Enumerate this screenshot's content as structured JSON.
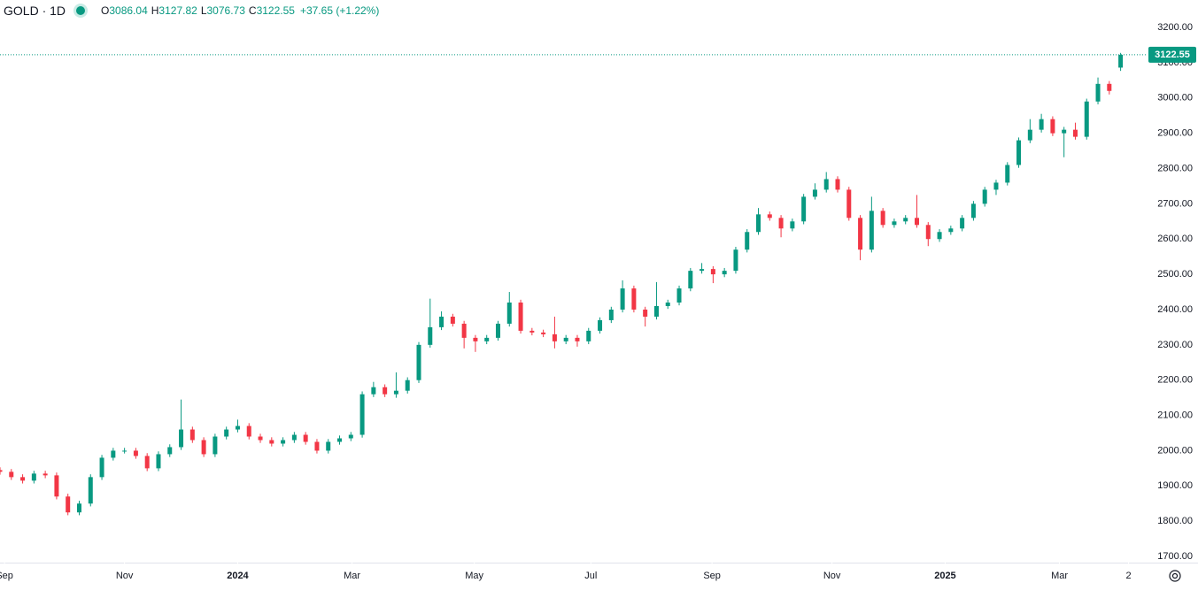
{
  "chart_data": {
    "type": "candlestick",
    "title": "GOLD · 1D",
    "ohlc_labels": [
      "O",
      "H",
      "L",
      "C"
    ],
    "change_label": "+37.65 (+1.22%)",
    "up_color": "#089981",
    "down_color": "#f23645",
    "xlim": [
      0,
      101.3
    ],
    "ylim": [
      1682.6,
      3277.8
    ],
    "xticks": [
      {
        "value": 0.4,
        "label": "Sep"
      },
      {
        "value": 11.0,
        "label": "Nov"
      },
      {
        "value": 21.0,
        "label": "2024"
      },
      {
        "value": 31.1,
        "label": "Mar"
      },
      {
        "value": 41.9,
        "label": "May"
      },
      {
        "value": 52.2,
        "label": "Jul"
      },
      {
        "value": 62.9,
        "label": "Sep"
      },
      {
        "value": 73.5,
        "label": "Nov"
      },
      {
        "value": 83.5,
        "label": "2025"
      },
      {
        "value": 93.6,
        "label": "Mar"
      },
      {
        "value": 99.7,
        "label": "2"
      }
    ],
    "yticks": [
      {
        "value": 1700,
        "label": "1700.00"
      },
      {
        "value": 1800,
        "label": "1800.00"
      },
      {
        "value": 1900,
        "label": "1900.00"
      },
      {
        "value": 2000,
        "label": "2000.00"
      },
      {
        "value": 2100,
        "label": "2100.00"
      },
      {
        "value": 2200,
        "label": "2200.00"
      },
      {
        "value": 2300,
        "label": "2300.00"
      },
      {
        "value": 2400,
        "label": "2400.00"
      },
      {
        "value": 2500,
        "label": "2500.00"
      },
      {
        "value": 2600,
        "label": "2600.00"
      },
      {
        "value": 2700,
        "label": "2700.00"
      },
      {
        "value": 2800,
        "label": "2800.00"
      },
      {
        "value": 2900,
        "label": "2900.00"
      },
      {
        "value": 3000,
        "label": "3000.00"
      },
      {
        "value": 3100,
        "label": "3100.00"
      },
      {
        "value": 3200,
        "label": "3200.00"
      }
    ],
    "open": [
      1945,
      1940,
      1925,
      1915,
      1935,
      1930,
      1870,
      1825,
      1850,
      1925,
      1980,
      2000,
      2000,
      1985,
      1950,
      1990,
      2010,
      2060,
      2030,
      1990,
      2040,
      2060,
      2070,
      2040,
      2030,
      2020,
      2030,
      2045,
      2025,
      2000,
      2025,
      2035,
      2045,
      2160,
      2180,
      2160,
      2170,
      2200,
      2300,
      2350,
      2380,
      2360,
      2320,
      2310,
      2320,
      2360,
      2420,
      2340,
      2335,
      2330,
      2310,
      2320,
      2310,
      2340,
      2370,
      2400,
      2460,
      2400,
      2380,
      2410,
      2420,
      2460,
      2510,
      2515,
      2500,
      2510,
      2570,
      2620,
      2670,
      2660,
      2630,
      2650,
      2720,
      2740,
      2770,
      2740,
      2660,
      2570,
      2680,
      2640,
      2650,
      2660,
      2640,
      2600,
      2620,
      2630,
      2660,
      2700,
      2740,
      2760,
      2810,
      2880,
      2910,
      2940,
      2900,
      2910,
      2890,
      2990,
      3040,
      3086.04
    ],
    "high": [
      1953,
      1948,
      1933,
      1943,
      1943,
      1938,
      1878,
      1858,
      1933,
      1988,
      2008,
      2008,
      2008,
      1993,
      1998,
      2018,
      2145,
      2068,
      2038,
      2048,
      2068,
      2088,
      2078,
      2048,
      2038,
      2038,
      2053,
      2053,
      2033,
      2033,
      2043,
      2053,
      2168,
      2195,
      2188,
      2222,
      2208,
      2308,
      2431,
      2395,
      2388,
      2368,
      2328,
      2328,
      2368,
      2450,
      2428,
      2348,
      2343,
      2380,
      2328,
      2328,
      2348,
      2378,
      2408,
      2483,
      2468,
      2408,
      2478,
      2428,
      2468,
      2518,
      2532,
      2523,
      2518,
      2578,
      2628,
      2688,
      2678,
      2668,
      2658,
      2728,
      2758,
      2790,
      2778,
      2748,
      2668,
      2720,
      2688,
      2658,
      2668,
      2725,
      2648,
      2628,
      2638,
      2668,
      2708,
      2748,
      2768,
      2818,
      2888,
      2940,
      2955,
      2948,
      2918,
      2930,
      2998,
      3058,
      3048,
      3127.82
    ],
    "low": [
      1932,
      1917,
      1907,
      1907,
      1922,
      1862,
      1817,
      1817,
      1842,
      1917,
      1972,
      1992,
      1977,
      1942,
      1942,
      1982,
      2002,
      2022,
      1982,
      1982,
      2032,
      2052,
      2032,
      2022,
      2012,
      2012,
      2022,
      2017,
      1992,
      1992,
      2017,
      2027,
      2037,
      2152,
      2152,
      2150,
      2162,
      2192,
      2292,
      2342,
      2352,
      2290,
      2280,
      2302,
      2312,
      2352,
      2332,
      2327,
      2322,
      2290,
      2302,
      2295,
      2302,
      2332,
      2362,
      2392,
      2392,
      2352,
      2372,
      2402,
      2412,
      2452,
      2502,
      2475,
      2492,
      2502,
      2562,
      2612,
      2652,
      2605,
      2622,
      2642,
      2712,
      2732,
      2732,
      2652,
      2540,
      2562,
      2632,
      2632,
      2642,
      2632,
      2580,
      2592,
      2612,
      2622,
      2652,
      2692,
      2725,
      2752,
      2802,
      2872,
      2902,
      2892,
      2832,
      2882,
      2882,
      2982,
      3010,
      3076.73
    ],
    "close": [
      1940,
      1925,
      1915,
      1935,
      1930,
      1870,
      1825,
      1850,
      1925,
      1980,
      2000,
      2000,
      1985,
      1950,
      1990,
      2010,
      2060,
      2030,
      1990,
      2040,
      2060,
      2070,
      2040,
      2030,
      2020,
      2030,
      2045,
      2025,
      2000,
      2025,
      2035,
      2045,
      2160,
      2180,
      2160,
      2170,
      2200,
      2300,
      2350,
      2380,
      2360,
      2320,
      2310,
      2320,
      2360,
      2420,
      2340,
      2335,
      2330,
      2310,
      2320,
      2310,
      2340,
      2370,
      2400,
      2460,
      2400,
      2380,
      2410,
      2420,
      2460,
      2510,
      2515,
      2500,
      2510,
      2570,
      2620,
      2670,
      2660,
      2630,
      2650,
      2720,
      2740,
      2770,
      2740,
      2660,
      2570,
      2680,
      2640,
      2650,
      2660,
      2640,
      2600,
      2620,
      2630,
      2660,
      2700,
      2740,
      2760,
      2810,
      2880,
      2910,
      2940,
      2900,
      2910,
      2890,
      2990,
      3040,
      3020,
      3122.55
    ]
  }
}
